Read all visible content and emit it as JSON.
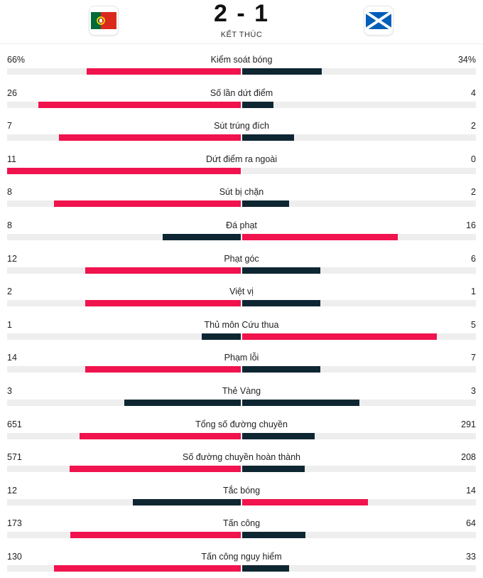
{
  "match": {
    "score": "2 - 1",
    "status": "KẾT THÚC"
  },
  "teams": {
    "home": {
      "flag_icon": "portugal-flag-icon",
      "colors": [
        "#046a38",
        "#da291c",
        "#ffe900"
      ]
    },
    "away": {
      "flag_icon": "scotland-flag-icon",
      "colors": [
        "#005eb8",
        "#ffffff"
      ]
    }
  },
  "colors": {
    "leader": "#f0134d",
    "trailer": "#0e2632",
    "track": "#eeeeef"
  },
  "stats": [
    {
      "label": "Kiểm soát bóng",
      "home": "66%",
      "away": "34%",
      "home_fraction": 0.66,
      "away_fraction": 0.34
    },
    {
      "label": "Số lần dứt điểm",
      "home": "26",
      "away": "4",
      "home_fraction": 0.867,
      "away_fraction": 0.133
    },
    {
      "label": "Sút trúng đích",
      "home": "7",
      "away": "2",
      "home_fraction": 0.778,
      "away_fraction": 0.222
    },
    {
      "label": "Dứt điểm ra ngoài",
      "home": "11",
      "away": "0",
      "home_fraction": 1.0,
      "away_fraction": 0.0
    },
    {
      "label": "Sút bị chặn",
      "home": "8",
      "away": "2",
      "home_fraction": 0.8,
      "away_fraction": 0.2
    },
    {
      "label": "Đá phạt",
      "home": "8",
      "away": "16",
      "home_fraction": 0.333,
      "away_fraction": 0.667
    },
    {
      "label": "Phạt góc",
      "home": "12",
      "away": "6",
      "home_fraction": 0.667,
      "away_fraction": 0.333
    },
    {
      "label": "Việt vị",
      "home": "2",
      "away": "1",
      "home_fraction": 0.667,
      "away_fraction": 0.333
    },
    {
      "label": "Thủ môn Cứu thua",
      "home": "1",
      "away": "5",
      "home_fraction": 0.167,
      "away_fraction": 0.833
    },
    {
      "label": "Phạm lỗi",
      "home": "14",
      "away": "7",
      "home_fraction": 0.667,
      "away_fraction": 0.333
    },
    {
      "label": "Thẻ Vàng",
      "home": "3",
      "away": "3",
      "home_fraction": 0.5,
      "away_fraction": 0.5
    },
    {
      "label": "Tổng số đường chuyền",
      "home": "651",
      "away": "291",
      "home_fraction": 0.691,
      "away_fraction": 0.309
    },
    {
      "label": "Số đường chuyền hoàn thành",
      "home": "571",
      "away": "208",
      "home_fraction": 0.733,
      "away_fraction": 0.267
    },
    {
      "label": "Tắc bóng",
      "home": "12",
      "away": "14",
      "home_fraction": 0.462,
      "away_fraction": 0.538
    },
    {
      "label": "Tấn công",
      "home": "173",
      "away": "64",
      "home_fraction": 0.73,
      "away_fraction": 0.27
    },
    {
      "label": "Tấn công nguy hiểm",
      "home": "130",
      "away": "33",
      "home_fraction": 0.798,
      "away_fraction": 0.202
    }
  ]
}
